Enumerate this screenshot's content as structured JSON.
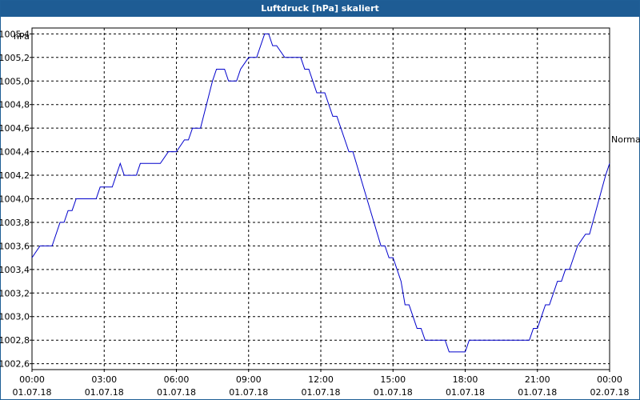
{
  "window": {
    "title": "Luftdruck [hPa] skaliert"
  },
  "chart_data": {
    "type": "line",
    "title": "Luftdruck [hPa] skaliert",
    "ylabel": "hPa",
    "ylim": [
      1002.55,
      1005.45
    ],
    "xlim": [
      "2018-07-01 00:00",
      "2018-07-02 00:00"
    ],
    "grid": true,
    "y_ticks": [
      "1002,6",
      "1002,8",
      "1003,0",
      "1003,2",
      "1003,4",
      "1003,6",
      "1003,8",
      "1004,0",
      "1004,2",
      "1004,4",
      "1004,6",
      "1004,8",
      "1005,0",
      "1005,2",
      "1005,4"
    ],
    "x_ticks": [
      {
        "time": "00:00",
        "date": "01.07.18"
      },
      {
        "time": "03:00",
        "date": "01.07.18"
      },
      {
        "time": "06:00",
        "date": "01.07.18"
      },
      {
        "time": "09:00",
        "date": "01.07.18"
      },
      {
        "time": "12:00",
        "date": "01.07.18"
      },
      {
        "time": "15:00",
        "date": "01.07.18"
      },
      {
        "time": "18:00",
        "date": "01.07.18"
      },
      {
        "time": "21:00",
        "date": "01.07.18"
      },
      {
        "time": "00:00",
        "date": "02.07.18"
      }
    ],
    "annotation": "Normal",
    "series": [
      {
        "color": "#0000cc",
        "x": [
          "00:00",
          "00:20",
          "00:50",
          "01:10",
          "01:20",
          "01:30",
          "01:40",
          "01:50",
          "02:40",
          "02:50",
          "03:00",
          "03:10",
          "03:20",
          "03:40",
          "03:50",
          "03:55",
          "04:00",
          "04:20",
          "04:30",
          "04:40",
          "05:10",
          "05:20",
          "05:40",
          "06:00",
          "06:20",
          "06:30",
          "06:40",
          "07:00",
          "07:30",
          "07:40",
          "08:00",
          "08:10",
          "08:20",
          "08:30",
          "08:40",
          "09:00",
          "09:20",
          "09:40",
          "09:50",
          "10:00",
          "10:10",
          "10:30",
          "10:40",
          "11:10",
          "11:20",
          "11:30",
          "11:40",
          "11:50",
          "12:00",
          "12:10",
          "12:20",
          "12:30",
          "12:40",
          "12:50",
          "13:00",
          "13:10",
          "13:20",
          "14:30",
          "14:40",
          "14:50",
          "15:00",
          "15:10",
          "15:20",
          "15:30",
          "15:40",
          "15:50",
          "16:00",
          "16:10",
          "16:20",
          "16:30",
          "17:10",
          "17:20",
          "17:40",
          "17:50",
          "18:00",
          "18:10",
          "18:50",
          "19:00",
          "19:10",
          "20:40",
          "20:50",
          "21:00",
          "21:10",
          "21:20",
          "21:30",
          "21:40",
          "21:50",
          "22:00",
          "22:10",
          "22:20",
          "22:30",
          "22:40",
          "23:00",
          "23:10",
          "23:50",
          "24:00"
        ],
        "values": [
          1003.5,
          1003.6,
          1003.6,
          1003.8,
          1003.8,
          1003.9,
          1003.9,
          1004.0,
          1004.0,
          1004.1,
          1004.1,
          1004.1,
          1004.1,
          1004.3,
          1004.2,
          1004.2,
          1004.2,
          1004.2,
          1004.3,
          1004.3,
          1004.3,
          1004.3,
          1004.4,
          1004.4,
          1004.5,
          1004.5,
          1004.6,
          1004.6,
          1005.0,
          1005.1,
          1005.1,
          1005.0,
          1005.0,
          1005.0,
          1005.1,
          1005.2,
          1005.2,
          1005.4,
          1005.4,
          1005.3,
          1005.3,
          1005.2,
          1005.2,
          1005.2,
          1005.1,
          1005.1,
          1005.0,
          1004.9,
          1004.9,
          1004.9,
          1004.8,
          1004.7,
          1004.7,
          1004.6,
          1004.5,
          1004.4,
          1004.4,
          1003.6,
          1003.6,
          1003.5,
          1003.5,
          1003.4,
          1003.3,
          1003.1,
          1003.1,
          1003.0,
          1002.9,
          1002.9,
          1002.8,
          1002.8,
          1002.8,
          1002.7,
          1002.7,
          1002.7,
          1002.7,
          1002.8,
          1002.8,
          1002.8,
          1002.8,
          1002.8,
          1002.9,
          1002.9,
          1003.0,
          1003.1,
          1003.1,
          1003.2,
          1003.3,
          1003.3,
          1003.4,
          1003.4,
          1003.5,
          1003.6,
          1003.7,
          1003.7,
          1004.2,
          1004.3
        ]
      }
    ]
  }
}
